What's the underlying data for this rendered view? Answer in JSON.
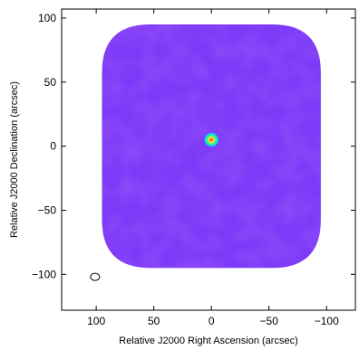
{
  "chart_data": {
    "type": "heatmap",
    "title": "",
    "xlabel": "Relative J2000 Right Ascension (arcsec)",
    "ylabel": "Relative J2000 Declination (arcsec)",
    "xlim": [
      130,
      -125
    ],
    "ylim": [
      -128,
      107
    ],
    "x_inverted": true,
    "xticks": [
      {
        "value": 100,
        "label": "100"
      },
      {
        "value": 50,
        "label": "50"
      },
      {
        "value": 0,
        "label": "0"
      },
      {
        "value": -50,
        "label": "−50"
      },
      {
        "value": -100,
        "label": "−100"
      }
    ],
    "yticks": [
      {
        "value": 100,
        "label": "100"
      },
      {
        "value": 50,
        "label": "50"
      },
      {
        "value": 0,
        "label": "0"
      },
      {
        "value": -50,
        "label": "−50"
      },
      {
        "value": -100,
        "label": "−100"
      }
    ],
    "map_extent_arcsec": 95,
    "source": {
      "ra": 0,
      "dec": 5,
      "radius": 3.5
    },
    "beam": {
      "ra": 101,
      "dec": -102
    },
    "colormap": [
      "#3a1fe0",
      "#5a2cf0",
      "#7a35ff",
      "#a03cf2",
      "#e040d0",
      "#20c0ff",
      "#20ff80",
      "#ffe040",
      "#ff3010"
    ],
    "background_color": "#7d3af8"
  }
}
